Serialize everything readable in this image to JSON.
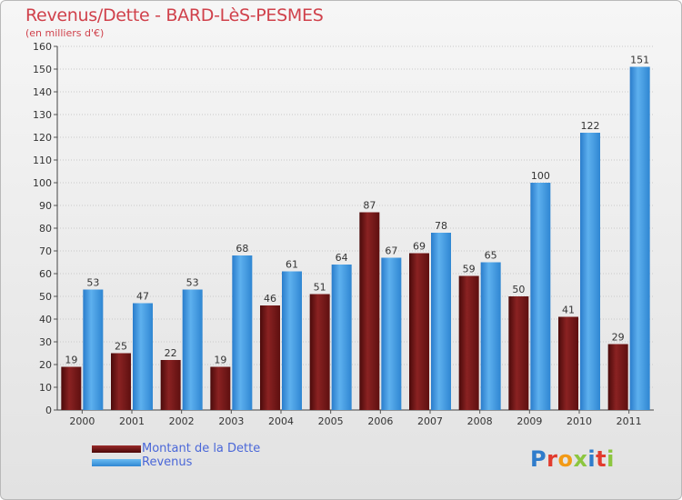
{
  "chart_data": {
    "type": "bar",
    "title": "Revenus/Dette - BARD-LèS-PESMES",
    "subtitle": "(en milliers d'€)",
    "categories": [
      "2000",
      "2001",
      "2002",
      "2003",
      "2004",
      "2005",
      "2006",
      "2007",
      "2008",
      "2009",
      "2010",
      "2011"
    ],
    "series": [
      {
        "name": "Montant de la Dette",
        "color": "#7a1a1a",
        "values": [
          19,
          25,
          22,
          19,
          46,
          51,
          87,
          69,
          59,
          50,
          41,
          29
        ]
      },
      {
        "name": "Revenus",
        "color": "#3f97dd",
        "values": [
          53,
          47,
          53,
          68,
          61,
          64,
          67,
          78,
          65,
          100,
          122,
          151
        ]
      }
    ],
    "ylim": [
      0,
      160
    ],
    "yticks": [
      0,
      10,
      20,
      30,
      40,
      50,
      60,
      70,
      80,
      90,
      100,
      110,
      120,
      130,
      140,
      150,
      160
    ],
    "grid": true,
    "legend_position": "bottom-left"
  },
  "logo": {
    "text": "Proxiti",
    "colors": [
      "#2f7ccb",
      "#e23b2e",
      "#f29a16",
      "#8cc63f",
      "#2f7ccb",
      "#e23b2e",
      "#8cc63f"
    ]
  }
}
